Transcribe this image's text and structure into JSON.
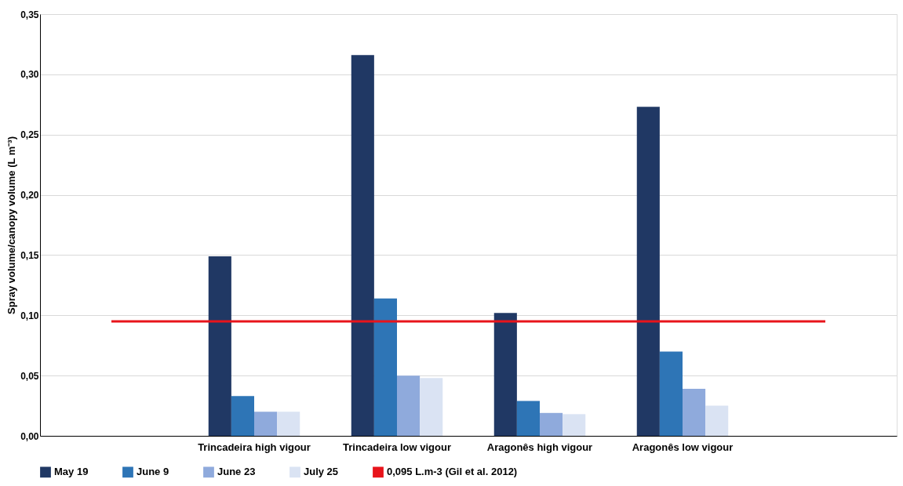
{
  "chart_data": {
    "type": "bar",
    "ylabel": "Spray volume/canopy volume (L m⁻³)",
    "categories": [
      null,
      "Trincadeira high vigour",
      "Trincadeira low vigour",
      "Aragonês high vigour",
      "Aragonês low vigour",
      null
    ],
    "series": [
      {
        "name": "May 19",
        "color": "#203864",
        "values": [
          null,
          0.149,
          0.316,
          0.102,
          0.273,
          null
        ]
      },
      {
        "name": "June 9",
        "color": "#2e75b6",
        "values": [
          null,
          0.033,
          0.114,
          0.029,
          0.07,
          null
        ]
      },
      {
        "name": "June 23",
        "color": "#8faadc",
        "values": [
          null,
          0.02,
          0.05,
          0.019,
          0.039,
          null
        ]
      },
      {
        "name": "July 25",
        "color": "#dae3f3",
        "values": [
          null,
          0.02,
          0.048,
          0.018,
          0.025,
          null
        ]
      },
      {
        "name": "0,095 L.m-3 (Gil et al. 2012)",
        "color": "#e8141b",
        "type": "line",
        "values": [
          0.095,
          0.095,
          0.095,
          0.095,
          0.095,
          0.095
        ]
      }
    ],
    "ylim": [
      0,
      0.35
    ],
    "yticks": [
      {
        "value": 0,
        "label": "0,00"
      },
      {
        "value": 0.05,
        "label": "0,05"
      },
      {
        "value": 0.1,
        "label": "0,10"
      },
      {
        "value": 0.15,
        "label": "0,15"
      },
      {
        "value": 0.2,
        "label": "0,20"
      },
      {
        "value": 0.25,
        "label": "0,25"
      },
      {
        "value": 0.3,
        "label": "0,30"
      },
      {
        "value": 0.35,
        "label": "0,35"
      }
    ],
    "grid": "y",
    "legend": "bottom"
  }
}
